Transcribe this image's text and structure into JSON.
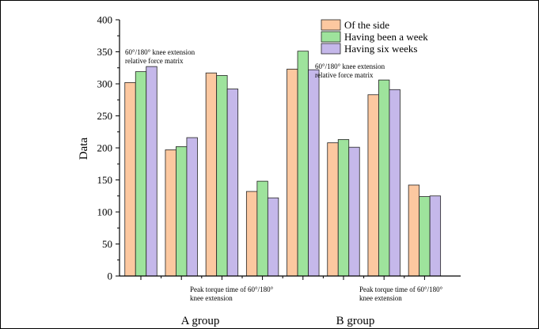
{
  "chart_data": {
    "type": "bar",
    "ylabel": "Data",
    "ylim": [
      0,
      400
    ],
    "yticks": [
      0,
      50,
      100,
      150,
      200,
      250,
      300,
      350,
      400
    ],
    "legend_position": "top-right",
    "colors": [
      "#FCC8A0",
      "#9EE39C",
      "#C5B8EA"
    ],
    "series": [
      {
        "name": "Of the side",
        "values": [
          302,
          197,
          317,
          132,
          323,
          208,
          283,
          142
        ]
      },
      {
        "name": "Having been a week",
        "values": [
          319,
          202,
          313,
          148,
          351,
          213,
          306,
          124
        ]
      },
      {
        "name": "Having six weeks",
        "values": [
          327,
          216,
          292,
          122,
          322,
          201,
          291,
          125
        ]
      }
    ],
    "annotations": [
      {
        "lines": [
          "60°/180° knee extension",
          "relative force matrix"
        ],
        "group": 0
      },
      {
        "lines": [
          "60°/180° knee extension",
          "relative force matrix"
        ],
        "group": 4
      },
      {
        "lines": [
          "Peak torque time of 60°/180°",
          "knee extension"
        ],
        "group": 2
      },
      {
        "lines": [
          "Peak torque time of 60°/180°",
          "knee extension"
        ],
        "group": 6
      }
    ],
    "group_labels": [
      "A group",
      "B group"
    ]
  }
}
